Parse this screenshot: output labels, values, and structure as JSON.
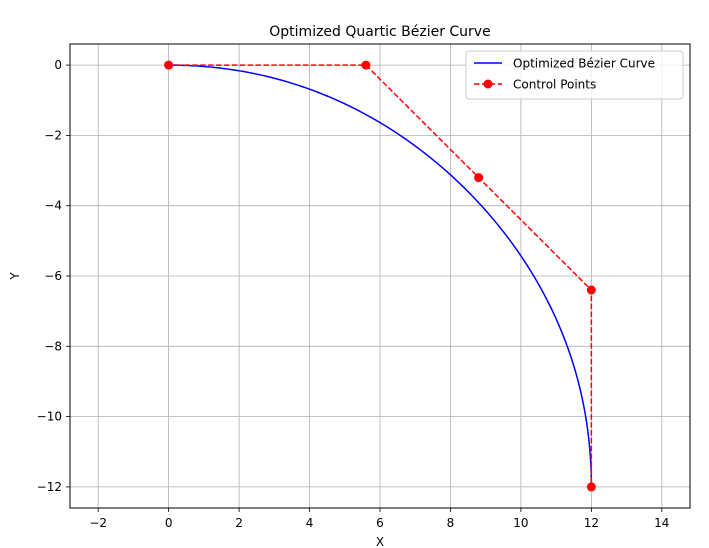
{
  "chart_data": {
    "type": "line",
    "title": "Optimized Quartic Bézier Curve",
    "xlabel": "X",
    "ylabel": "Y",
    "xlim": [
      -2.8,
      14.8
    ],
    "ylim": [
      -12.6,
      0.6
    ],
    "xticks": [
      -2,
      0,
      2,
      4,
      6,
      8,
      10,
      12,
      14
    ],
    "yticks": [
      0,
      -2,
      -4,
      -6,
      -8,
      -10,
      -12
    ],
    "xtick_labels": [
      "−2",
      "0",
      "2",
      "4",
      "6",
      "8",
      "10",
      "12",
      "14"
    ],
    "ytick_labels": [
      "0",
      "−2",
      "−4",
      "−6",
      "−8",
      "−10",
      "−12"
    ],
    "grid": true,
    "legend_position": "top-right",
    "series": [
      {
        "name": "Optimized Bézier Curve",
        "kind": "bezier",
        "color": "#0000ff",
        "style": "solid",
        "control_points": [
          [
            0,
            0
          ],
          [
            5.6,
            0
          ],
          [
            8.8,
            -3.2
          ],
          [
            12,
            -6.4
          ],
          [
            12,
            -12
          ]
        ]
      },
      {
        "name": "Control Points",
        "kind": "polyline",
        "color": "#ff0000",
        "style": "dashed",
        "marker": "circle",
        "x": [
          0,
          5.6,
          8.8,
          12,
          12
        ],
        "y": [
          0,
          0,
          -3.2,
          -6.4,
          -12
        ]
      }
    ]
  }
}
